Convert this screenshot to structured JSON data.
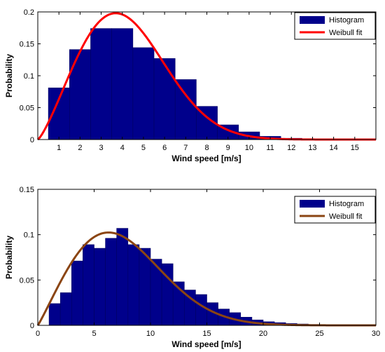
{
  "chart_data": [
    {
      "type": "bar",
      "subtype": "histogram with fitted curve",
      "xlabel": "Wind speed [m/s]",
      "ylabel": "Probability",
      "xlim": [
        0,
        16
      ],
      "ylim": [
        0,
        0.2
      ],
      "xticks": [
        "1",
        "2",
        "3",
        "4",
        "5",
        "6",
        "7",
        "8",
        "9",
        "10",
        "11",
        "12",
        "13",
        "14",
        "15"
      ],
      "yticks": [
        "0",
        "0.05",
        "0.1",
        "0.15",
        "0.2"
      ],
      "bin_edges": [
        0.5,
        1.5,
        2.5,
        3.5,
        4.5,
        5.5,
        6.5,
        7.5,
        8.5,
        9.5,
        10.5,
        11.5,
        12.5,
        13.5,
        14.5,
        15.5
      ],
      "values": [
        0.081,
        0.141,
        0.174,
        0.174,
        0.144,
        0.127,
        0.094,
        0.052,
        0.023,
        0.012,
        0.005,
        0.002,
        0.001,
        0.0005,
        0.0002
      ],
      "curve": {
        "name": "Weibull fit",
        "shape": 2.28,
        "scale": 4.75,
        "color": "#ff0000"
      },
      "legend": {
        "position": "top-right",
        "entries": [
          "Histogram",
          "Weibull fit"
        ]
      },
      "bar_color": "#00008b",
      "grid": false
    },
    {
      "type": "bar",
      "subtype": "histogram with fitted curve",
      "xlabel": "Wind speed [m/s]",
      "ylabel": "Probability",
      "xlim": [
        0,
        30
      ],
      "ylim": [
        0,
        0.15
      ],
      "xticks": [
        "0",
        "5",
        "10",
        "15",
        "20",
        "25",
        "30"
      ],
      "yticks": [
        "0",
        "0.05",
        "0.1",
        "0.15"
      ],
      "bin_edges": [
        1,
        2,
        3,
        4,
        5,
        6,
        7,
        8,
        9,
        10,
        11,
        12,
        13,
        14,
        15,
        16,
        17,
        18,
        19,
        20,
        21,
        22,
        23,
        24,
        25,
        26,
        27,
        28,
        29
      ],
      "values": [
        0.024,
        0.036,
        0.071,
        0.089,
        0.085,
        0.096,
        0.107,
        0.089,
        0.085,
        0.073,
        0.068,
        0.048,
        0.039,
        0.034,
        0.025,
        0.018,
        0.014,
        0.009,
        0.006,
        0.004,
        0.003,
        0.002,
        0.0015,
        0.001,
        0.0008,
        0.0005,
        0.0003,
        0.0002
      ],
      "curve": {
        "name": "Weibull fit",
        "shape": 2.08,
        "scale": 8.6,
        "color": "#8b4513"
      },
      "legend": {
        "position": "top-right",
        "entries": [
          "Histogram",
          "Weibull fit"
        ]
      },
      "bar_color": "#00008b",
      "grid": false
    }
  ]
}
